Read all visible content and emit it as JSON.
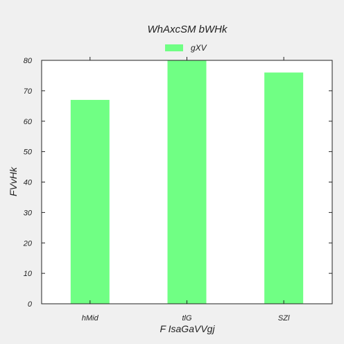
{
  "chart_data": {
    "type": "bar",
    "title": "WhAxcSM  bWHk",
    "xlabel": "F IsaGaVVgj",
    "ylabel": "FVvHk",
    "categories": [
      "hMid",
      "tlG",
      "SZl"
    ],
    "series": [
      {
        "name": "gXV",
        "values": [
          67,
          80,
          76
        ],
        "color": "#70ff84"
      }
    ],
    "ylim": [
      0,
      80
    ],
    "yticks": [
      0,
      10,
      20,
      30,
      40,
      50,
      60,
      70,
      80
    ],
    "grid": false,
    "legend_position": "top-center",
    "colors": {
      "background": "#f0f0f0",
      "plot_background": "#ffffff",
      "axis": "#222222"
    }
  }
}
